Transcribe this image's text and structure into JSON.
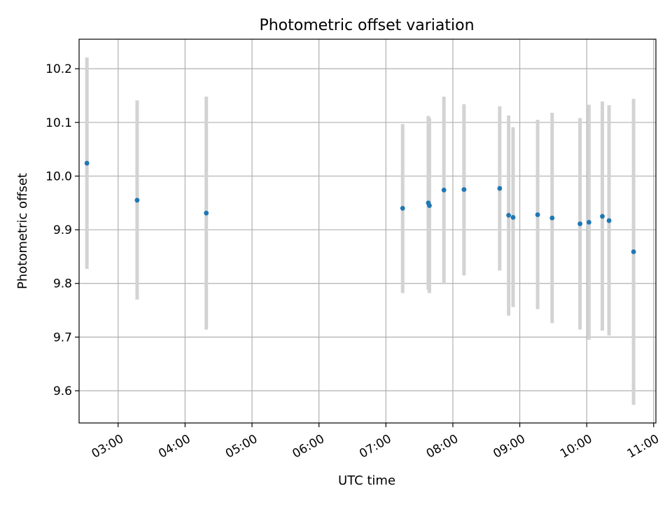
{
  "chart_data": {
    "type": "scatter",
    "title": "Photometric offset variation",
    "xlabel": "UTC time",
    "ylabel": "Photometric offset",
    "xlim": [
      "02:25",
      "11:02"
    ],
    "ylim": [
      9.54,
      10.255
    ],
    "x_ticks": [
      "03:00",
      "04:00",
      "05:00",
      "06:00",
      "07:00",
      "08:00",
      "09:00",
      "10:00",
      "11:00"
    ],
    "y_ticks": [
      9.6,
      9.7,
      9.8,
      9.9,
      10.0,
      10.1,
      10.2
    ],
    "grid": true,
    "points": [
      {
        "time": "02:32",
        "y": 10.024,
        "ylow": 9.827,
        "yhigh": 10.221
      },
      {
        "time": "03:17",
        "y": 9.955,
        "ylow": 9.77,
        "yhigh": 10.141
      },
      {
        "time": "04:19",
        "y": 9.931,
        "ylow": 9.714,
        "yhigh": 10.148
      },
      {
        "time": "07:15",
        "y": 9.94,
        "ylow": 9.782,
        "yhigh": 10.097
      },
      {
        "time": "07:38",
        "y": 9.95,
        "ylow": 9.788,
        "yhigh": 10.112
      },
      {
        "time": "07:39",
        "y": 9.945,
        "ylow": 9.782,
        "yhigh": 10.108
      },
      {
        "time": "07:52",
        "y": 9.974,
        "ylow": 9.8,
        "yhigh": 10.148
      },
      {
        "time": "08:10",
        "y": 9.975,
        "ylow": 9.815,
        "yhigh": 10.134
      },
      {
        "time": "08:42",
        "y": 9.977,
        "ylow": 9.824,
        "yhigh": 10.13
      },
      {
        "time": "08:50",
        "y": 9.927,
        "ylow": 9.74,
        "yhigh": 10.113
      },
      {
        "time": "08:54",
        "y": 9.923,
        "ylow": 9.756,
        "yhigh": 10.091
      },
      {
        "time": "09:16",
        "y": 9.928,
        "ylow": 9.752,
        "yhigh": 10.105
      },
      {
        "time": "09:29",
        "y": 9.922,
        "ylow": 9.726,
        "yhigh": 10.118
      },
      {
        "time": "09:54",
        "y": 9.911,
        "ylow": 9.714,
        "yhigh": 10.108
      },
      {
        "time": "10:02",
        "y": 9.914,
        "ylow": 9.695,
        "yhigh": 10.133
      },
      {
        "time": "10:14",
        "y": 9.925,
        "ylow": 9.712,
        "yhigh": 10.139
      },
      {
        "time": "10:20",
        "y": 9.917,
        "ylow": 9.703,
        "yhigh": 10.132
      },
      {
        "time": "10:42",
        "y": 9.859,
        "ylow": 9.574,
        "yhigh": 10.144
      }
    ],
    "colors": {
      "point": "#1f77b4",
      "errorbar": "#d3d3d3",
      "grid": "#b0b0b0",
      "axis": "#000000"
    }
  }
}
